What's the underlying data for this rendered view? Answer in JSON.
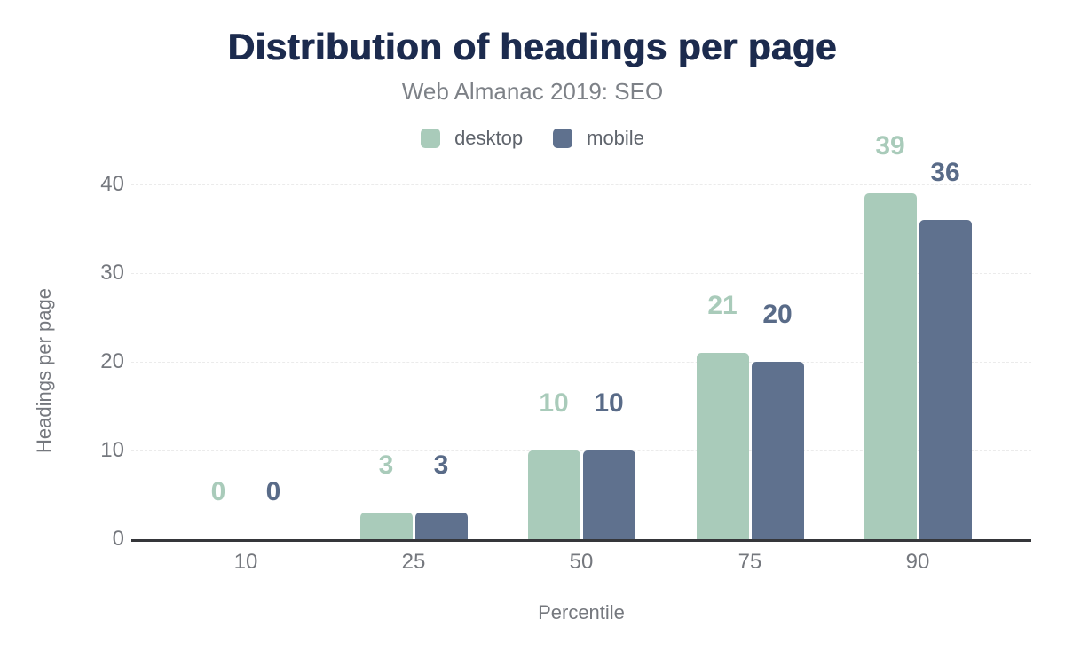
{
  "chart_data": {
    "type": "bar",
    "title": "Distribution of headings per page",
    "subtitle": "Web Almanac 2019: SEO",
    "xlabel": "Percentile",
    "ylabel": "Headings per page",
    "categories": [
      "10",
      "25",
      "50",
      "75",
      "90"
    ],
    "series": [
      {
        "name": "desktop",
        "color": "#a9cbba",
        "label_color": "#a9cbba",
        "values": [
          0,
          3,
          10,
          21,
          39
        ]
      },
      {
        "name": "mobile",
        "color": "#5f718e",
        "label_color": "#596b88",
        "values": [
          0,
          3,
          10,
          20,
          36
        ]
      }
    ],
    "y_ticks": [
      0,
      10,
      20,
      30,
      40
    ],
    "ylim": [
      0,
      40
    ],
    "grid": true,
    "legend_position": "top",
    "colors": {
      "title": "#1c2b4e",
      "subtitle": "#7d8187",
      "axis_text": "#75787e",
      "legend_text": "#5f646c",
      "axis_line": "#35363a",
      "gridline": "#ebebeb",
      "background": "#ffffff"
    }
  }
}
